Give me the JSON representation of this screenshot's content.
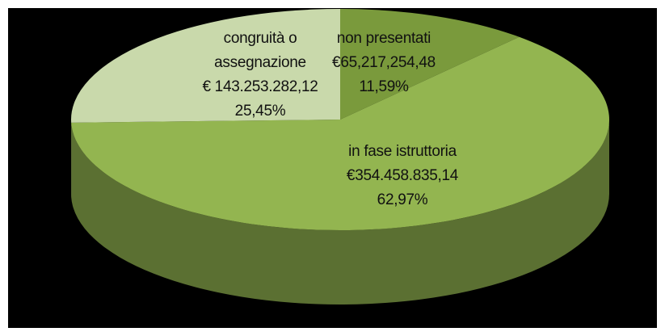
{
  "chart_data": {
    "type": "pie",
    "categories": [
      "non presentati",
      "in fase istruttoria",
      "congruità o assegnazione"
    ],
    "values": [
      11.59,
      62.97,
      25.45
    ],
    "value_labels": [
      "11,59%",
      "62,97%",
      "25,45%"
    ],
    "amounts": [
      65217254.48,
      354458835.14,
      143253282.12
    ],
    "amount_labels": [
      "€65,217,254,48",
      "€354.458.835,14",
      "€ 143.253.282,12"
    ],
    "colors": [
      "#7a9a3c",
      "#93b550",
      "#c9d9ab"
    ]
  }
}
